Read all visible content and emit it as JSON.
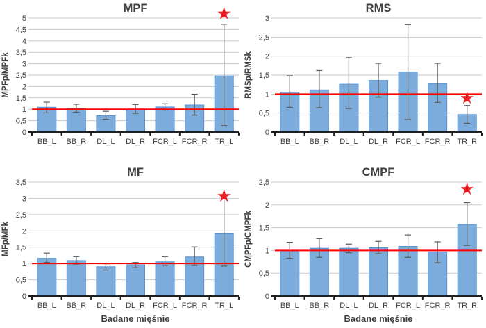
{
  "figure": {
    "background": "#ffffff",
    "shared_xlabel": "Badane mięśnie"
  },
  "colors": {
    "bar_fill": "#7CACDC",
    "bar_border": "#5792CE",
    "error_bar": "#595959",
    "reference_line": "#FF0000",
    "gridline": "#C9C9C9",
    "axis_line": "#1F1F1F",
    "text": "#3F3F3F",
    "star": "#ED1C24"
  },
  "chart_data": [
    {
      "type": "bar",
      "title": "MPF",
      "ylabel": "MPFp/MPFk",
      "xlabel": "",
      "ylim": [
        0,
        5
      ],
      "ytick_step": 0.5,
      "decimal_separator": ",",
      "grid": true,
      "legend": false,
      "categories": [
        "BB_L",
        "BB_R",
        "DL_L",
        "DL_R",
        "FCR_L",
        "FCR_R",
        "TR_L"
      ],
      "values": [
        1.09,
        1.04,
        0.72,
        1.0,
        1.1,
        1.19,
        2.46
      ],
      "error_low": [
        0.84,
        0.87,
        0.56,
        0.82,
        0.96,
        0.74,
        0.28
      ],
      "error_high": [
        1.31,
        1.22,
        0.91,
        1.21,
        1.24,
        1.66,
        4.73
      ],
      "reference_line_y": 1,
      "significance_star": {
        "category": "TR_L",
        "y": 5.2
      }
    },
    {
      "type": "bar",
      "title": "RMS",
      "ylabel": "RMSp/RMSk",
      "xlabel": "",
      "ylim": [
        0,
        3
      ],
      "ytick_step": 0.5,
      "decimal_separator": ",",
      "grid": true,
      "legend": false,
      "categories": [
        "BB_L",
        "BB_R",
        "DL_L",
        "DL_R",
        "FCR_L",
        "FCR_R",
        "TR_R"
      ],
      "values": [
        1.05,
        1.11,
        1.26,
        1.36,
        1.58,
        1.27,
        0.46
      ],
      "error_low": [
        0.65,
        0.64,
        0.62,
        0.92,
        0.33,
        0.78,
        0.23
      ],
      "error_high": [
        1.48,
        1.62,
        1.96,
        1.81,
        2.83,
        1.81,
        0.7
      ],
      "reference_line_y": 1,
      "significance_star": {
        "category": "TR_R",
        "y": 0.9
      }
    },
    {
      "type": "bar",
      "title": "MF",
      "ylabel": "MFp/MFk",
      "xlabel": "Badane mięśnie",
      "ylim": [
        0,
        3.5
      ],
      "ytick_step": 0.5,
      "decimal_separator": ",",
      "grid": true,
      "legend": false,
      "categories": [
        "BB_L",
        "BB_R",
        "DL_L",
        "DL_R",
        "FCR_L",
        "FCR_R",
        "TR_L"
      ],
      "values": [
        1.16,
        1.09,
        0.9,
        0.96,
        1.05,
        1.2,
        1.91
      ],
      "error_low": [
        1.03,
        0.98,
        0.8,
        0.87,
        0.94,
        0.94,
        0.92
      ],
      "error_high": [
        1.32,
        1.21,
        0.99,
        1.03,
        1.21,
        1.51,
        3.0
      ],
      "reference_line_y": 1,
      "significance_star": {
        "category": "TR_L",
        "y": 3.07
      }
    },
    {
      "type": "bar",
      "title": "CMPF",
      "ylabel": "CMPFp/CMPFk",
      "xlabel": "Badane mięśnie",
      "ylim": [
        0,
        2.5
      ],
      "ytick_step": 0.5,
      "decimal_separator": ",",
      "grid": true,
      "legend": false,
      "categories": [
        "BB_L",
        "BB_R",
        "DL_L",
        "DL_R",
        "FCR_L",
        "FCR_R",
        "TR_R"
      ],
      "values": [
        1.0,
        1.05,
        1.05,
        1.06,
        1.09,
        0.97,
        1.57
      ],
      "error_low": [
        0.83,
        0.85,
        0.95,
        0.93,
        0.85,
        0.73,
        1.11
      ],
      "error_high": [
        1.18,
        1.26,
        1.14,
        1.2,
        1.34,
        1.19,
        2.05
      ],
      "reference_line_y": 1,
      "significance_star": {
        "category": "TR_R",
        "y": 2.35
      }
    }
  ]
}
